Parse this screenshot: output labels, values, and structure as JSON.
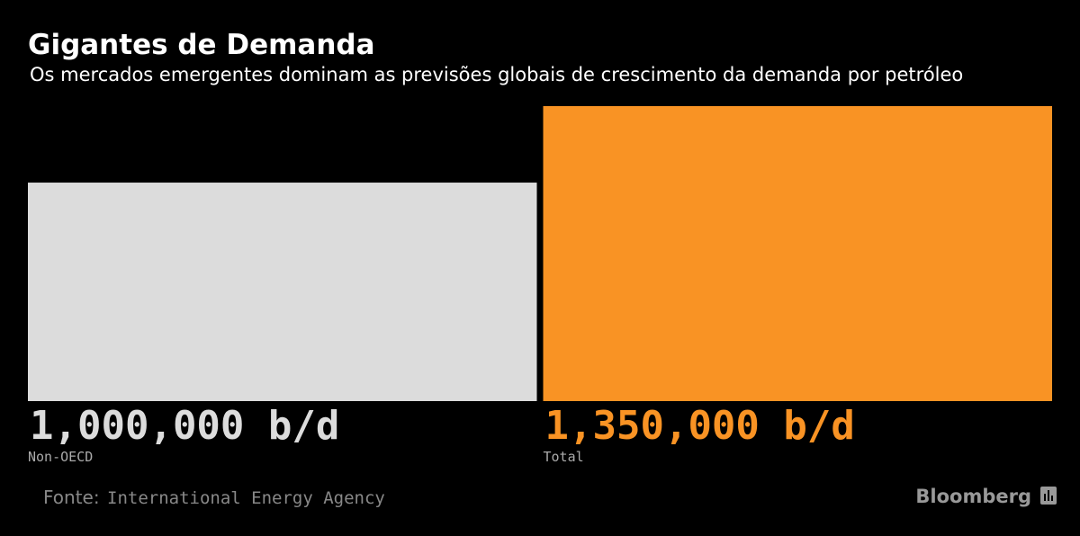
{
  "chart_data": {
    "type": "bar",
    "title": "Gigantes de Demanda",
    "subtitle": "Os mercados emergentes dominam as previsões globais de crescimento da demanda por petróleo",
    "categories": [
      "Non-OECD",
      "Total"
    ],
    "values": [
      1000000,
      1350000
    ],
    "value_labels": [
      "1,000,000 b/d",
      "1,350,000 b/d"
    ],
    "colors": [
      "#dcdcdc",
      "#f99324"
    ],
    "source_label": "Fonte:",
    "source": "International Energy Agency",
    "brand": "Bloomberg"
  }
}
